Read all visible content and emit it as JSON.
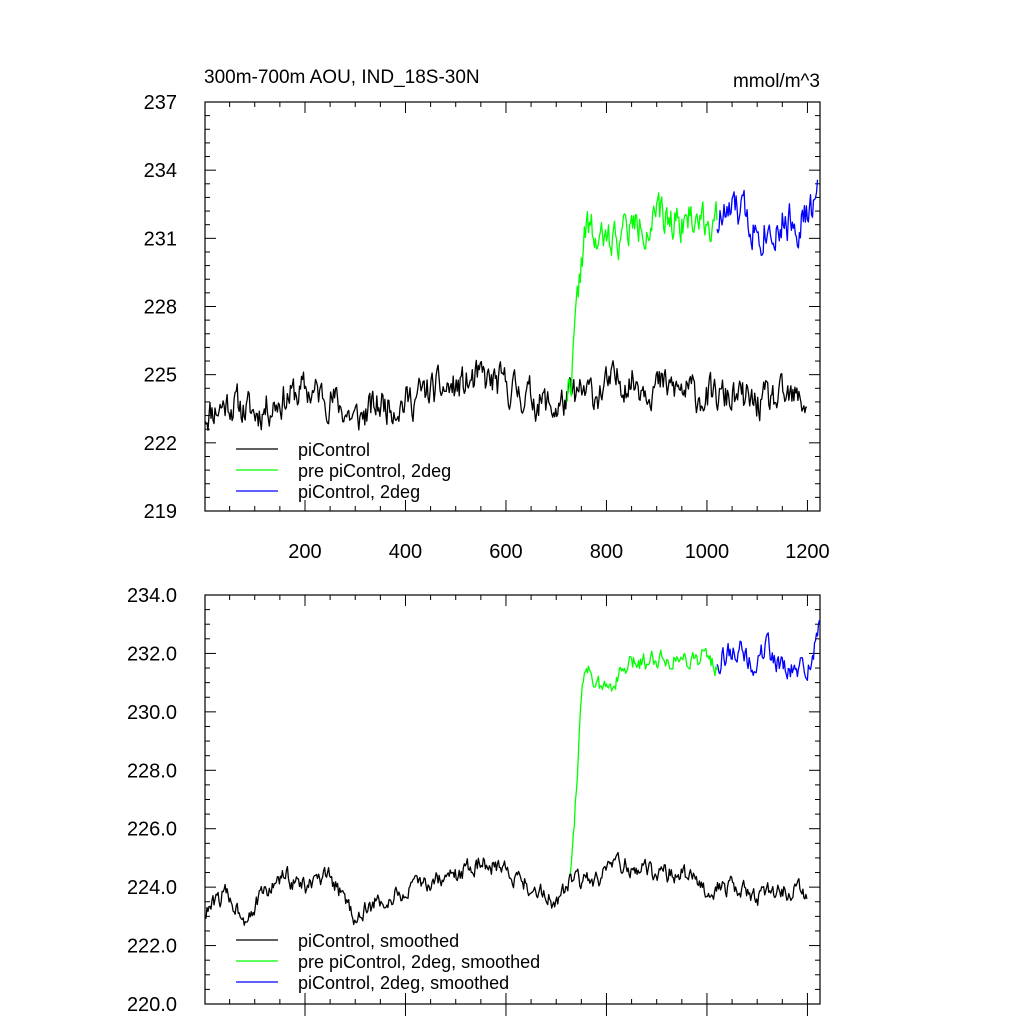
{
  "chart_data": [
    {
      "type": "line",
      "title": "300m-700m AOU, IND_18S-30N",
      "units": "mmol/m^3",
      "xlabel": "",
      "ylabel": "",
      "xlim": [
        1,
        1225
      ],
      "ylim": [
        219,
        237
      ],
      "xticks": [
        200,
        400,
        600,
        800,
        1000,
        1200
      ],
      "xtick_labels": [
        "200",
        "400",
        "600",
        "800",
        "1000",
        "1200"
      ],
      "yticks": [
        219,
        222,
        225,
        228,
        231,
        234,
        237
      ],
      "ytick_labels": [
        "219",
        "222",
        "225",
        "228",
        "231",
        "234",
        "237"
      ],
      "legend_position": "bottom-left",
      "series": [
        {
          "name": "piControl",
          "color": "#000000",
          "x_start": 1,
          "x_end": 1200,
          "base": [
            [
              1,
              223.3
            ],
            [
              50,
              223.8
            ],
            [
              100,
              223.3
            ],
            [
              150,
              223.9
            ],
            [
              200,
              224.3
            ],
            [
              250,
              224.0
            ],
            [
              300,
              223.0
            ],
            [
              350,
              223.7
            ],
            [
              400,
              223.8
            ],
            [
              450,
              224.3
            ],
            [
              500,
              224.4
            ],
            [
              550,
              224.8
            ],
            [
              600,
              224.5
            ],
            [
              650,
              224.0
            ],
            [
              700,
              223.5
            ],
            [
              730,
              224.0
            ],
            [
              780,
              224.2
            ],
            [
              830,
              224.8
            ],
            [
              900,
              224.5
            ],
            [
              950,
              224.3
            ],
            [
              1000,
              224.0
            ],
            [
              1050,
              224.0
            ],
            [
              1100,
              223.7
            ],
            [
              1150,
              223.9
            ],
            [
              1200,
              223.8
            ]
          ],
          "noise": 1.1,
          "seed": 11
        },
        {
          "name": "pre piControl, 2deg",
          "color": "#00ff00",
          "x_start": 720,
          "x_end": 1020,
          "base": [
            [
              720,
              224.2
            ],
            [
              730,
              225.0
            ],
            [
              740,
              227.5
            ],
            [
              750,
              230.0
            ],
            [
              760,
              231.5
            ],
            [
              780,
              230.8
            ],
            [
              800,
              230.8
            ],
            [
              850,
              231.5
            ],
            [
              900,
              231.8
            ],
            [
              950,
              231.9
            ],
            [
              1000,
              231.9
            ],
            [
              1020,
              231.6
            ]
          ],
          "noise": 1.2,
          "seed": 22
        },
        {
          "name": "piControl, 2deg",
          "color": "#0000ff",
          "x_start": 1020,
          "x_end": 1220,
          "base": [
            [
              1020,
              231.8
            ],
            [
              1060,
              232.2
            ],
            [
              1100,
              231.5
            ],
            [
              1150,
              231.7
            ],
            [
              1200,
              231.9
            ],
            [
              1220,
              232.8
            ]
          ],
          "noise": 1.3,
          "seed": 33
        }
      ]
    },
    {
      "type": "line",
      "title": "",
      "xlabel": "",
      "ylabel": "",
      "xlim": [
        1,
        1225
      ],
      "ylim": [
        220.0,
        234.0
      ],
      "xticks": [
        200,
        400,
        600,
        800,
        1000,
        1200
      ],
      "yticks": [
        220.0,
        222.0,
        224.0,
        226.0,
        228.0,
        230.0,
        232.0,
        234.0
      ],
      "ytick_labels": [
        "220.0",
        "222.0",
        "224.0",
        "226.0",
        "228.0",
        "230.0",
        "232.0",
        "234.0"
      ],
      "legend_position": "bottom-left",
      "series": [
        {
          "name": "piControl, smoothed",
          "color": "#000000",
          "x_start": 1,
          "x_end": 1200,
          "base": [
            [
              1,
              223.1
            ],
            [
              40,
              223.8
            ],
            [
              80,
              223.0
            ],
            [
              120,
              223.8
            ],
            [
              160,
              224.4
            ],
            [
              200,
              224.0
            ],
            [
              250,
              224.3
            ],
            [
              300,
              223.0
            ],
            [
              350,
              223.5
            ],
            [
              400,
              223.8
            ],
            [
              450,
              224.2
            ],
            [
              500,
              224.4
            ],
            [
              550,
              224.9
            ],
            [
              600,
              224.6
            ],
            [
              650,
              224.0
            ],
            [
              700,
              223.5
            ],
            [
              730,
              224.2
            ],
            [
              780,
              224.2
            ],
            [
              830,
              224.8
            ],
            [
              900,
              224.5
            ],
            [
              950,
              224.4
            ],
            [
              1000,
              224.0
            ],
            [
              1050,
              224.0
            ],
            [
              1100,
              223.7
            ],
            [
              1150,
              223.9
            ],
            [
              1200,
              223.8
            ]
          ],
          "noise": 0.45,
          "seed": 44
        },
        {
          "name": "pre piControl, 2deg, smoothed",
          "color": "#00ff00",
          "x_start": 728,
          "x_end": 1020,
          "base": [
            [
              728,
              224.6
            ],
            [
              735,
              226.0
            ],
            [
              745,
              229.0
            ],
            [
              752,
              231.0
            ],
            [
              760,
              231.8
            ],
            [
              780,
              230.8
            ],
            [
              800,
              230.8
            ],
            [
              850,
              231.6
            ],
            [
              900,
              231.9
            ],
            [
              950,
              231.8
            ],
            [
              1000,
              231.9
            ],
            [
              1020,
              231.5
            ]
          ],
          "noise": 0.45,
          "seed": 55
        },
        {
          "name": "piControl, 2deg, smoothed",
          "color": "#0000ff",
          "x_start": 1020,
          "x_end": 1225,
          "base": [
            [
              1020,
              231.8
            ],
            [
              1060,
              232.2
            ],
            [
              1090,
              231.5
            ],
            [
              1120,
              232.2
            ],
            [
              1160,
              231.3
            ],
            [
              1200,
              231.5
            ],
            [
              1225,
              232.9
            ]
          ],
          "noise": 0.6,
          "seed": 66
        }
      ]
    }
  ]
}
